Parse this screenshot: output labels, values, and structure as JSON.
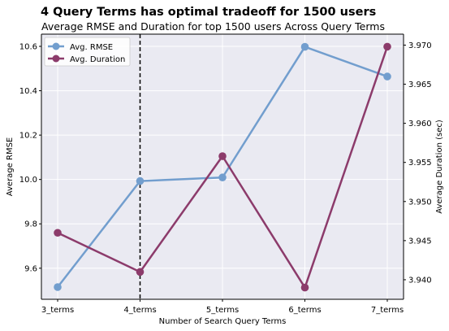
{
  "chart_data": {
    "type": "line",
    "title": "4 Query Terms has optimal tradeoff for 1500 users",
    "subtitle": "Average RMSE and Duration for top 1500 users Across Query Terms",
    "xlabel": "Number of Search Query Terms",
    "ylabel_left": "Average RMSE",
    "ylabel_right": "Average Duration (sec)",
    "categories": [
      "3_terms",
      "4_terms",
      "5_terms",
      "6_terms",
      "7_terms"
    ],
    "series": [
      {
        "name": "Avg. RMSE",
        "axis": "left",
        "color": "#729ece",
        "values": [
          9.515,
          9.993,
          10.009,
          10.598,
          10.464
        ]
      },
      {
        "name": "Avg. Duration",
        "axis": "right",
        "color": "#8c3b6b",
        "values": [
          3.946,
          3.941,
          3.9558,
          3.939,
          3.9698
        ]
      }
    ],
    "ylim_left": [
      9.46,
      10.655
    ],
    "ylim_right": [
      3.9375,
      3.9714
    ],
    "yticks_left": [
      "9.6",
      "9.8",
      "10.0",
      "10.2",
      "10.4",
      "10.6"
    ],
    "yticks_right": [
      "3.940",
      "3.945",
      "3.950",
      "3.955",
      "3.960",
      "3.965",
      "3.970"
    ],
    "vline_category": "4_terms",
    "grid": true,
    "legend_position": "top-left",
    "background_color": "#eaeaf2"
  }
}
